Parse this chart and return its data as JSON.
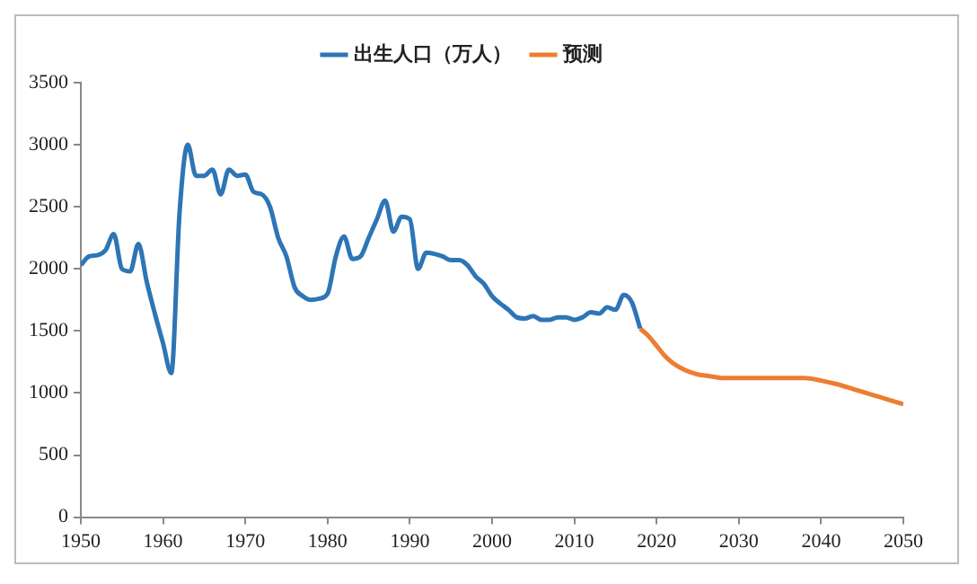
{
  "chart_data": {
    "type": "line",
    "xlim": [
      1950,
      2050
    ],
    "xticks": [
      1950,
      1960,
      1970,
      1980,
      1990,
      2000,
      2010,
      2020,
      2030,
      2040,
      2050
    ],
    "ylim": [
      0,
      3500
    ],
    "yticks": [
      0,
      500,
      1000,
      1500,
      2000,
      2500,
      3000,
      3500
    ],
    "grid": false,
    "legend": "top",
    "marker": "none",
    "line_style": "solid",
    "series": [
      {
        "name": "出生人口（万人）",
        "color": "#2e75b6",
        "x": [
          1950,
          1951,
          1952,
          1953,
          1954,
          1955,
          1956,
          1957,
          1958,
          1959,
          1960,
          1961,
          1962,
          1963,
          1964,
          1965,
          1966,
          1967,
          1968,
          1969,
          1970,
          1971,
          1972,
          1973,
          1974,
          1975,
          1976,
          1977,
          1978,
          1979,
          1980,
          1981,
          1982,
          1983,
          1984,
          1985,
          1986,
          1987,
          1988,
          1989,
          1990,
          1991,
          1992,
          1993,
          1994,
          1995,
          1996,
          1997,
          1998,
          1999,
          2000,
          2001,
          2002,
          2003,
          2004,
          2005,
          2006,
          2007,
          2008,
          2009,
          2010,
          2011,
          2012,
          2013,
          2014,
          2015,
          2016,
          2017,
          2018
        ],
        "values": [
          2030,
          2100,
          2110,
          2150,
          2280,
          2000,
          1980,
          2200,
          1900,
          1640,
          1400,
          1160,
          2450,
          3000,
          2750,
          2750,
          2800,
          2600,
          2800,
          2750,
          2760,
          2620,
          2600,
          2500,
          2250,
          2100,
          1850,
          1780,
          1750,
          1760,
          1800,
          2100,
          2260,
          2080,
          2100,
          2250,
          2400,
          2550,
          2300,
          2420,
          2400,
          2000,
          2130,
          2120,
          2100,
          2070,
          2070,
          2030,
          1940,
          1880,
          1780,
          1720,
          1670,
          1610,
          1600,
          1620,
          1590,
          1590,
          1610,
          1610,
          1590,
          1610,
          1650,
          1640,
          1690,
          1670,
          1790,
          1730,
          1520
        ]
      },
      {
        "name": "预测",
        "color": "#ed7d31",
        "x": [
          2018,
          2019,
          2020,
          2021,
          2022,
          2023,
          2024,
          2025,
          2026,
          2027,
          2028,
          2030,
          2033,
          2035,
          2038,
          2040,
          2042,
          2044,
          2046,
          2048,
          2050
        ],
        "values": [
          1520,
          1460,
          1380,
          1300,
          1240,
          1200,
          1170,
          1150,
          1140,
          1130,
          1120,
          1120,
          1120,
          1120,
          1120,
          1100,
          1070,
          1030,
          990,
          950,
          910
        ]
      }
    ]
  }
}
